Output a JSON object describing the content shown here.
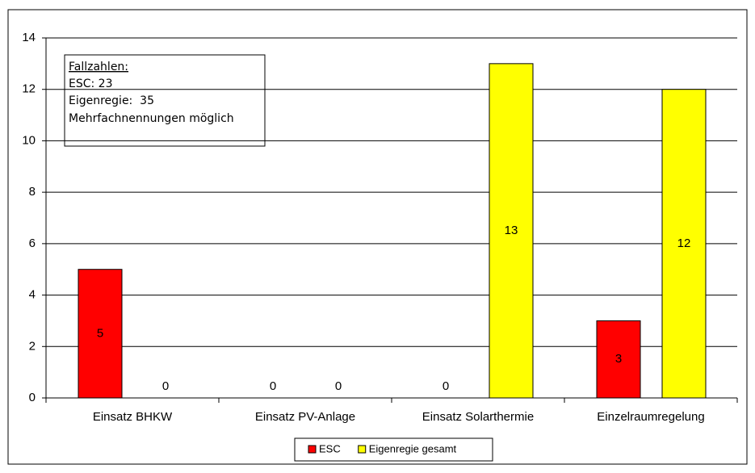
{
  "chart_data": {
    "type": "bar",
    "categories": [
      "Einsatz BHKW",
      "Einsatz PV-Anlage",
      "Einsatz Solarthermie",
      "Einzelraumregelung"
    ],
    "series": [
      {
        "name": "ESC",
        "color": "#ff0000",
        "values": [
          5,
          0,
          0,
          3
        ]
      },
      {
        "name": "Eigenregie gesamt",
        "color": "#ffff00",
        "values": [
          0,
          0,
          13,
          12
        ]
      }
    ],
    "ylim": [
      0,
      14
    ],
    "yticks": [
      0,
      2,
      4,
      6,
      8,
      10,
      12,
      14
    ],
    "grid": true,
    "legend": "bottom",
    "annotation": {
      "title": "Fallzahlen:",
      "lines": [
        "ESC: 23",
        "Eigenregie:  35",
        "Mehrfachnennungen möglich"
      ]
    }
  }
}
